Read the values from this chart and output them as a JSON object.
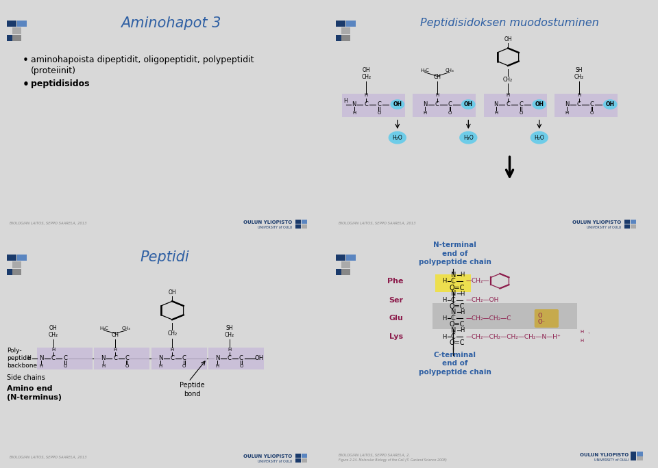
{
  "bg_color": "#d8d8d8",
  "panel_bg": "#f0f0f0",
  "title_color": "#2e5fa3",
  "amino_bg": "#c8bcd8",
  "h2o_bg": "#6ecce8",
  "peptide_bond_highlight": "#f0e040",
  "glu_bg": "#b0b0b0",
  "panel1_title": "Aminohapot 3",
  "panel2_title": "Peptidisidoksen muodostuminen",
  "panel3_title": "Peptidi",
  "footer1": "BIOLOGIAN LAITOS, SEPPO SAARELA, 2013",
  "footer2": "BIOLOGIAN LAITOS, SEPPO SAARELA, 2013",
  "footer3": "BIOLOGIAN LAITOS, SEPPO SAARELA, 2013",
  "footer4a": "BIOLOGIAN LAITOS, SEPPO SAARELA, 2.",
  "footer4b": "Figure 2-24. Molecular Biology of the Cell (© Garland Science 2008)",
  "oulun_text": "OULUN YLIOPISTO",
  "oulun_sub": "UNIVERSITY of OULU",
  "residue_color": "#8b1a4a",
  "backbone_color": "#000000",
  "nterminal_color": "#2e5fa3",
  "cterminal_color": "#2e5fa3"
}
